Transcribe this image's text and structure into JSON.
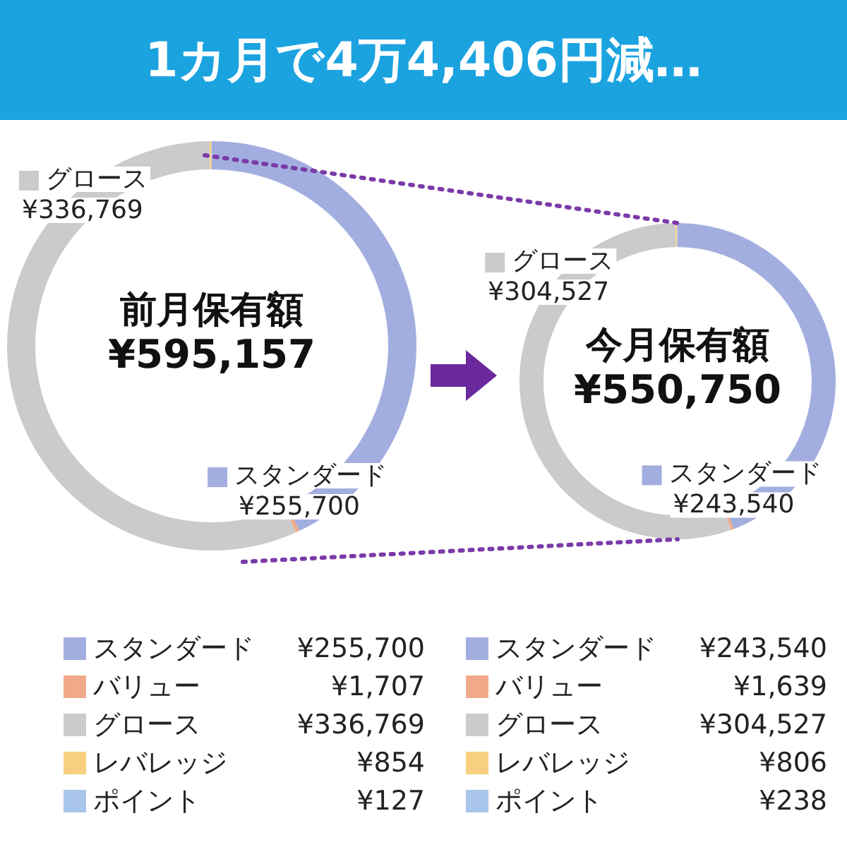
{
  "chart_data": [
    {
      "type": "donut",
      "title": "1カ月で4万4,406円減…",
      "categories": [
        "スタンダード",
        "バリュー",
        "グロース",
        "レバレッジ",
        "ポイント"
      ],
      "values": [
        255700,
        1707,
        336769,
        854,
        127
      ],
      "value_labels": [
        "¥255,700",
        "¥1,707",
        "¥336,769",
        "¥854",
        "¥127"
      ],
      "colors": [
        "#a3aee0",
        "#f2a98a",
        "#cbcbcb",
        "#f7cf7e",
        "#a9c6ea"
      ],
      "annotations": [
        "前月保有額",
        "¥595,157"
      ],
      "legend": "bottom"
    },
    {
      "type": "donut",
      "categories": [
        "スタンダード",
        "バリュー",
        "グロース",
        "レバレッジ",
        "ポイント"
      ],
      "values": [
        243540,
        1639,
        304527,
        806,
        238
      ],
      "value_labels": [
        "¥243,540",
        "¥1,639",
        "¥304,527",
        "¥806",
        "¥238"
      ],
      "colors": [
        "#a3aee0",
        "#f2a98a",
        "#cbcbcb",
        "#f7cf7e",
        "#a9c6ea"
      ],
      "annotations": [
        "今月保有額",
        "¥550,750"
      ],
      "legend": "bottom"
    }
  ]
}
